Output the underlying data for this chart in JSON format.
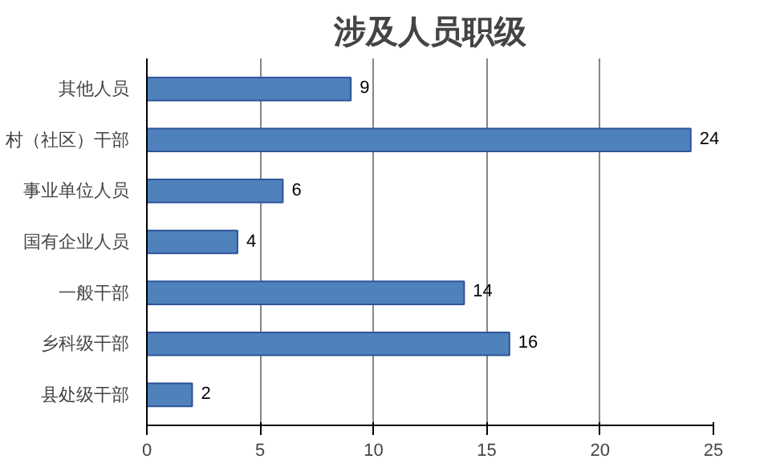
{
  "chart_data": {
    "type": "bar",
    "orientation": "horizontal",
    "title": "涉及人员职级",
    "categories": [
      "其他人员",
      "村（社区）干部",
      "事业单位人员",
      "国有企业人员",
      "一般干部",
      "乡科级干部",
      "县处级干部"
    ],
    "values": [
      9,
      24,
      6,
      4,
      14,
      16,
      2
    ],
    "color": "#4f81bd",
    "xlim": [
      0,
      25
    ],
    "xticks": [
      0,
      5,
      10,
      15,
      20,
      25
    ],
    "grid": "x",
    "data_labels": true
  }
}
